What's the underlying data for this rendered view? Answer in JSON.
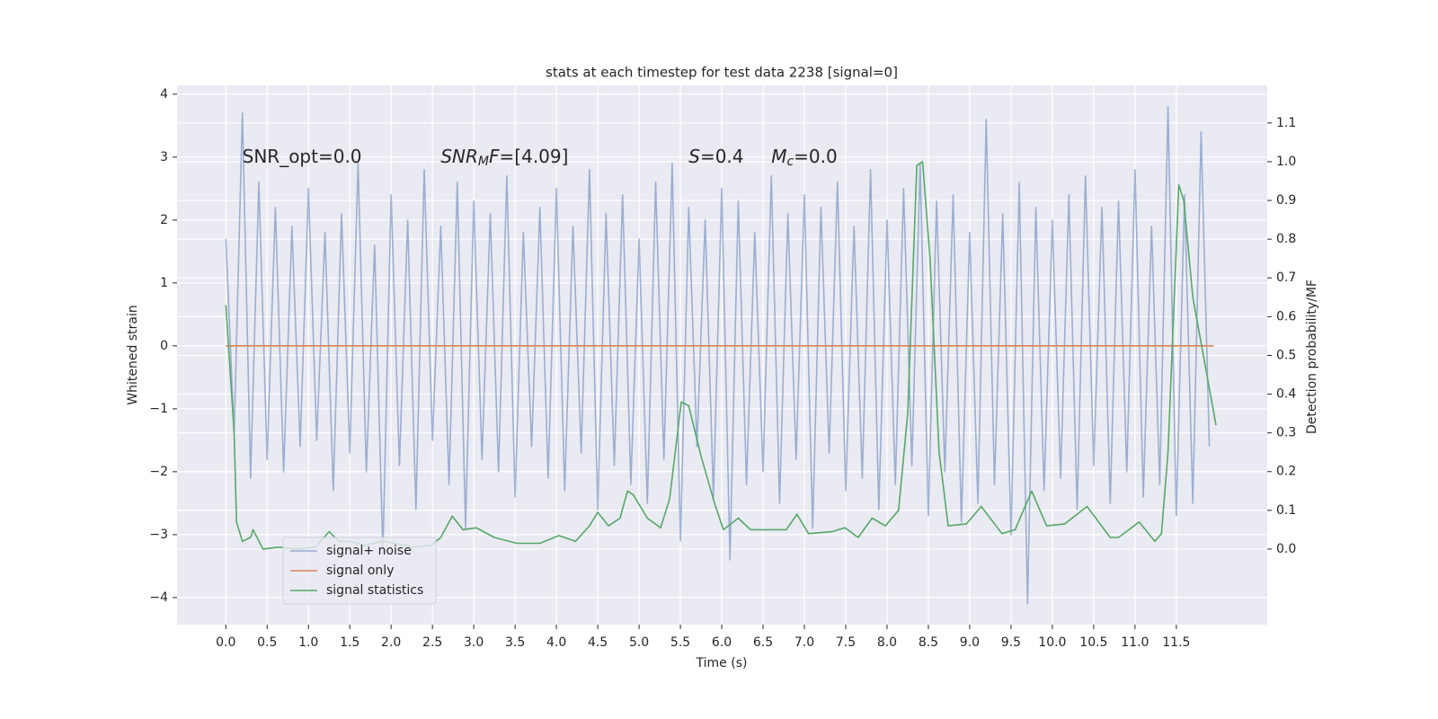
{
  "chart_data": {
    "type": "line",
    "title": "stats at each timestep for test data 2238 [signal=0]",
    "xlabel": "Time (s)",
    "ylabel": "Whitened strain",
    "y2label": "Detection probability/MF",
    "xlim": [
      -0.59,
      12.6
    ],
    "ylim": [
      -4.43,
      4.14
    ],
    "y2lim": [
      -0.195,
      1.197
    ],
    "xticks": [
      {
        "value": 0,
        "label": "0.0"
      },
      0.5,
      {
        "value": 1,
        "label": "1.0"
      },
      1.5,
      {
        "value": 2,
        "label": "2.0"
      },
      2.5,
      {
        "value": 3,
        "label": "3.0"
      },
      3.5,
      {
        "value": 4,
        "label": "4.0"
      },
      4.5,
      {
        "value": 5,
        "label": "5.0"
      },
      5.5,
      {
        "value": 6,
        "label": "6.0"
      },
      6.5,
      {
        "value": 7,
        "label": "7.0"
      },
      7.5,
      {
        "value": 8,
        "label": "8.0"
      },
      8.5,
      {
        "value": 9,
        "label": "9.0"
      },
      9.5,
      {
        "value": 10,
        "label": "10.0"
      },
      10.5,
      {
        "value": 11,
        "label": "11.0"
      },
      11.5
    ],
    "yticks": [
      {
        "value": -4,
        "label": "−4"
      },
      {
        "value": -3,
        "label": "−3"
      },
      {
        "value": -2,
        "label": "−2"
      },
      {
        "value": -1,
        "label": "−1"
      },
      0,
      1,
      2,
      3,
      4
    ],
    "y2ticks": [
      {
        "value": 0,
        "label": "0.0"
      },
      0.1,
      0.2,
      0.3,
      0.4,
      0.5,
      0.6,
      0.7,
      0.8,
      0.9,
      {
        "value": 1,
        "label": "1.0"
      },
      1.1
    ],
    "grid": true,
    "legend": "lower left",
    "annotations": [
      {
        "x": 0.2,
        "y": 3,
        "segments": [
          {
            "text": "SNR_opt=0.0"
          }
        ]
      },
      {
        "x": 2.6,
        "y": 3,
        "segments": [
          {
            "text": "SNR",
            "italic": true
          },
          {
            "text": "M",
            "italic": true,
            "sub": true
          },
          {
            "text": "F",
            "italic": true
          },
          {
            "text": "=[4.09]"
          }
        ]
      },
      {
        "x": 5.6,
        "y": 3,
        "segments": [
          {
            "text": "S",
            "italic": true
          },
          {
            "text": "=0.4"
          }
        ]
      },
      {
        "x": 6.6,
        "y": 3,
        "segments": [
          {
            "text": "M",
            "italic": true
          },
          {
            "text": "c",
            "italic": true,
            "sub": true
          },
          {
            "text": "=0.0"
          }
        ]
      }
    ],
    "series": [
      {
        "name": "signal+ noise",
        "color": "#4c72b0",
        "alpha": 0.5,
        "x": [
          0,
          0.1,
          0.2,
          0.3,
          0.4,
          0.5,
          0.6,
          0.7,
          0.8,
          0.9,
          1,
          1.1,
          1.2,
          1.3,
          1.4,
          1.5,
          1.6,
          1.7,
          1.8,
          1.9,
          2,
          2.1,
          2.2,
          2.3,
          2.4,
          2.5,
          2.6,
          2.7,
          2.8,
          2.9,
          3,
          3.1,
          3.2,
          3.3,
          3.4,
          3.5,
          3.6,
          3.7,
          3.8,
          3.9,
          4,
          4.1,
          4.2,
          4.3,
          4.4,
          4.5,
          4.6,
          4.7,
          4.8,
          4.9,
          5,
          5.1,
          5.2,
          5.3,
          5.4,
          5.5,
          5.6,
          5.7,
          5.8,
          5.9,
          6,
          6.1,
          6.2,
          6.3,
          6.4,
          6.5,
          6.6,
          6.7,
          6.8,
          6.9,
          7,
          7.1,
          7.2,
          7.3,
          7.4,
          7.5,
          7.6,
          7.7,
          7.8,
          7.9,
          8,
          8.1,
          8.2,
          8.3,
          8.4,
          8.5,
          8.6,
          8.7,
          8.8,
          8.9,
          9,
          9.1,
          9.2,
          9.3,
          9.4,
          9.5,
          9.6,
          9.7,
          9.8,
          9.9,
          10,
          10.1,
          10.2,
          10.3,
          10.4,
          10.5,
          10.6,
          10.7,
          10.8,
          10.9,
          11,
          11.1,
          11.2,
          11.3,
          11.4,
          11.5,
          11.6,
          11.7,
          11.8,
          11.9
        ],
        "values": [
          1.7,
          -1.4,
          3.7,
          -2.1,
          2.6,
          -1.8,
          2.2,
          -2.0,
          1.9,
          -1.6,
          2.5,
          -1.5,
          1.8,
          -2.3,
          2.1,
          -1.7,
          2.9,
          -2.0,
          1.6,
          -3.3,
          2.4,
          -1.9,
          2.0,
          -2.6,
          2.8,
          -1.5,
          1.9,
          -2.2,
          2.6,
          -2.9,
          2.3,
          -1.8,
          2.1,
          -2.0,
          2.7,
          -2.4,
          1.8,
          -1.6,
          2.2,
          -2.1,
          2.5,
          -2.3,
          1.9,
          -1.7,
          2.8,
          -2.6,
          2.1,
          -1.9,
          2.4,
          -2.2,
          1.7,
          -2.5,
          2.6,
          -1.8,
          2.9,
          -3.1,
          2.2,
          -1.6,
          2.0,
          -2.4,
          2.5,
          -3.4,
          2.3,
          -2.2,
          1.8,
          -2.0,
          2.7,
          -2.5,
          2.1,
          -1.8,
          2.4,
          -2.9,
          2.2,
          -1.7,
          2.6,
          -2.3,
          1.9,
          -2.1,
          2.8,
          -2.6,
          2.0,
          -2.2,
          2.5,
          -1.9,
          2.9,
          -2.7,
          2.3,
          -2.0,
          2.4,
          -2.8,
          1.8,
          -2.5,
          3.6,
          -2.2,
          2.1,
          -3.0,
          2.6,
          -4.1,
          2.2,
          -2.3,
          2.0,
          -2.1,
          2.4,
          -2.6,
          2.7,
          -1.9,
          2.2,
          -2.5,
          2.3,
          -2.0,
          2.8,
          -2.4,
          1.9,
          -2.2,
          3.8,
          -2.7,
          2.4,
          -2.5,
          3.4,
          -1.6
        ]
      },
      {
        "name": "signal only",
        "color": "#dd8452",
        "alpha": 1,
        "x": [
          0,
          11.95
        ],
        "values": [
          0,
          0
        ]
      },
      {
        "name": "signal statistics",
        "color": "#55a868",
        "alpha": 1,
        "axis": "y2",
        "x": [
          0,
          0.1,
          0.13,
          0.2,
          0.3,
          0.33,
          0.45,
          0.64,
          0.86,
          1.08,
          1.25,
          1.37,
          1.5,
          1.67,
          1.9,
          2.05,
          2.27,
          2.49,
          2.6,
          2.74,
          2.87,
          3.03,
          3.25,
          3.52,
          3.8,
          4.03,
          4.23,
          4.4,
          4.5,
          4.63,
          4.77,
          4.86,
          4.93,
          5.1,
          5.26,
          5.37,
          5.51,
          5.6,
          5.75,
          5.91,
          6.02,
          6.2,
          6.35,
          6.57,
          6.78,
          6.91,
          7.05,
          7.33,
          7.49,
          7.65,
          7.82,
          7.98,
          8.14,
          8.25,
          8.36,
          8.43,
          8.52,
          8.63,
          8.74,
          8.96,
          9.14,
          9.39,
          9.55,
          9.75,
          9.93,
          10.15,
          10.42,
          10.7,
          10.8,
          11.05,
          11.24,
          11.32,
          11.4,
          11.53,
          11.59,
          11.7,
          11.98
        ],
        "values": [
          0.63,
          0.3,
          0.07,
          0.02,
          0.03,
          0.05,
          0.0,
          0.005,
          0.0,
          0.005,
          0.045,
          0.02,
          0.02,
          0.01,
          0.02,
          0.015,
          0.005,
          0.01,
          0.03,
          0.085,
          0.05,
          0.055,
          0.03,
          0.015,
          0.015,
          0.035,
          0.02,
          0.06,
          0.095,
          0.06,
          0.08,
          0.15,
          0.14,
          0.08,
          0.055,
          0.13,
          0.38,
          0.37,
          0.24,
          0.12,
          0.05,
          0.08,
          0.05,
          0.05,
          0.05,
          0.09,
          0.04,
          0.045,
          0.055,
          0.03,
          0.08,
          0.06,
          0.1,
          0.35,
          0.99,
          1.0,
          0.75,
          0.25,
          0.06,
          0.065,
          0.11,
          0.04,
          0.05,
          0.15,
          0.06,
          0.065,
          0.11,
          0.03,
          0.03,
          0.07,
          0.02,
          0.04,
          0.25,
          0.94,
          0.9,
          0.65,
          0.32
        ]
      }
    ]
  }
}
